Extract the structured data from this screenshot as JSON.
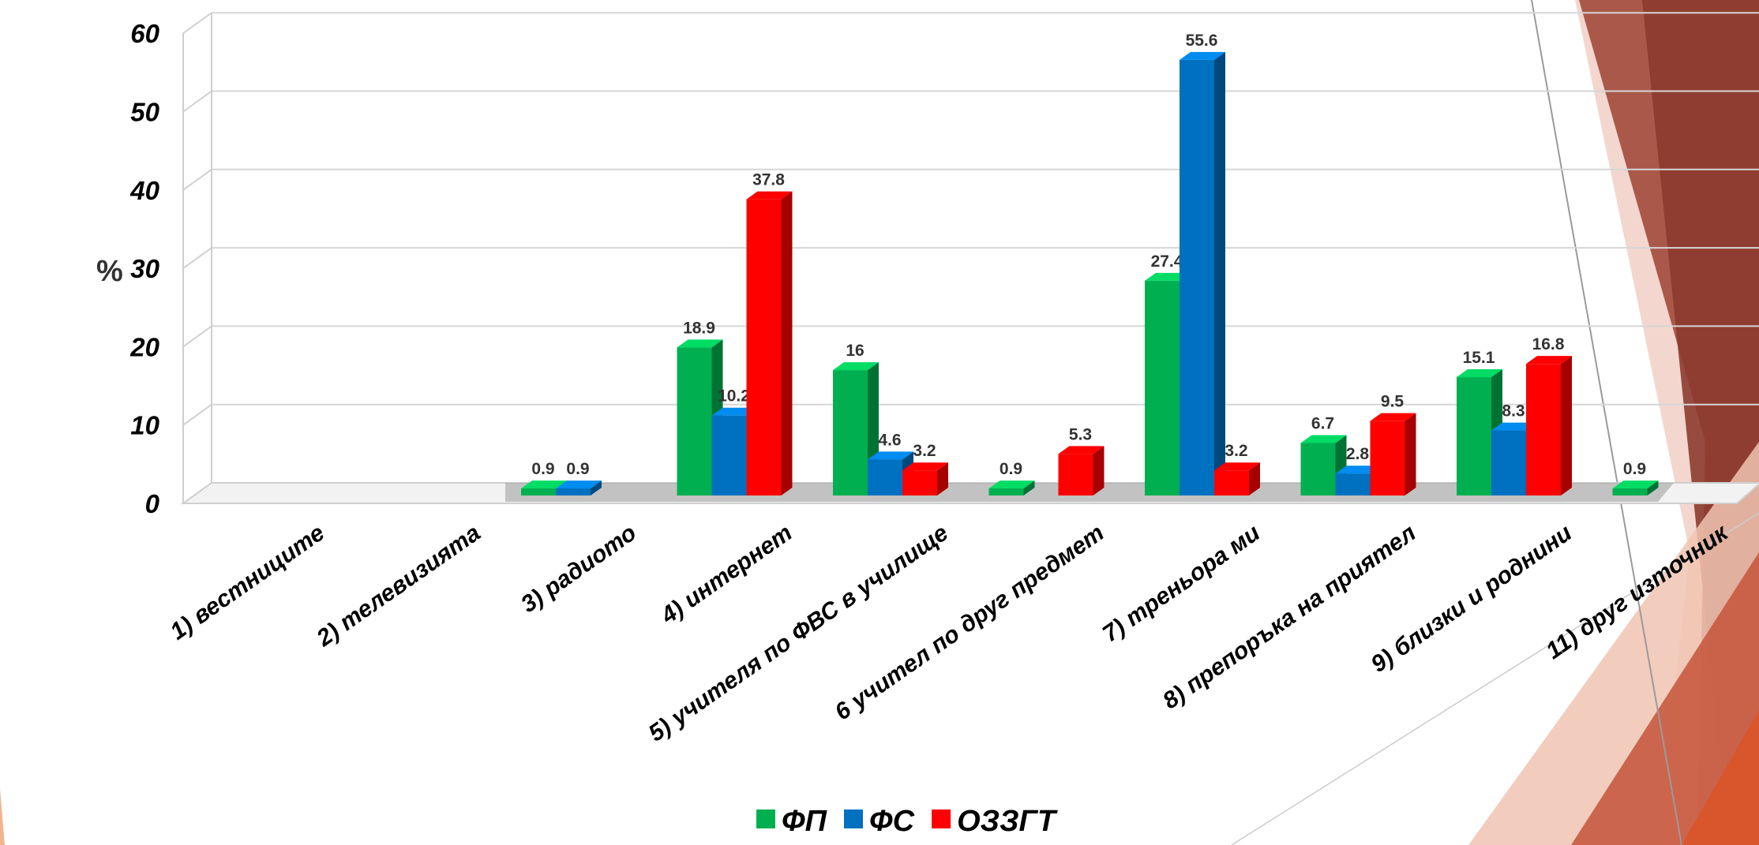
{
  "chart_data": {
    "type": "bar",
    "ylabel": "%",
    "ylim": [
      0,
      60
    ],
    "yticks": [
      0,
      10,
      20,
      30,
      40,
      50,
      60
    ],
    "grid": true,
    "legend_position": "bottom",
    "categories": [
      "1) вестниците",
      "2) телевизията",
      "3)  радиото",
      "4) интернет",
      "5) учителя по ФВС в училище",
      "6  учител по друг предмет",
      "7) треньора ми",
      "8) препоръка на приятел",
      "9) близки и роднини",
      "11) друг източник"
    ],
    "series": [
      {
        "name": "ФП",
        "color": "#00b050",
        "values": [
          null,
          null,
          0.9,
          18.9,
          16,
          0.9,
          27.4,
          6.7,
          15.1,
          0.9
        ]
      },
      {
        "name": "ФС",
        "color": "#0070c0",
        "values": [
          null,
          null,
          0.9,
          10.2,
          4.6,
          null,
          55.6,
          2.8,
          8.3,
          null
        ]
      },
      {
        "name": "ОЗЗГТ",
        "color": "#ff0000",
        "values": [
          null,
          null,
          null,
          37.8,
          3.2,
          5.3,
          3.2,
          9.5,
          16.8,
          null
        ]
      }
    ]
  }
}
